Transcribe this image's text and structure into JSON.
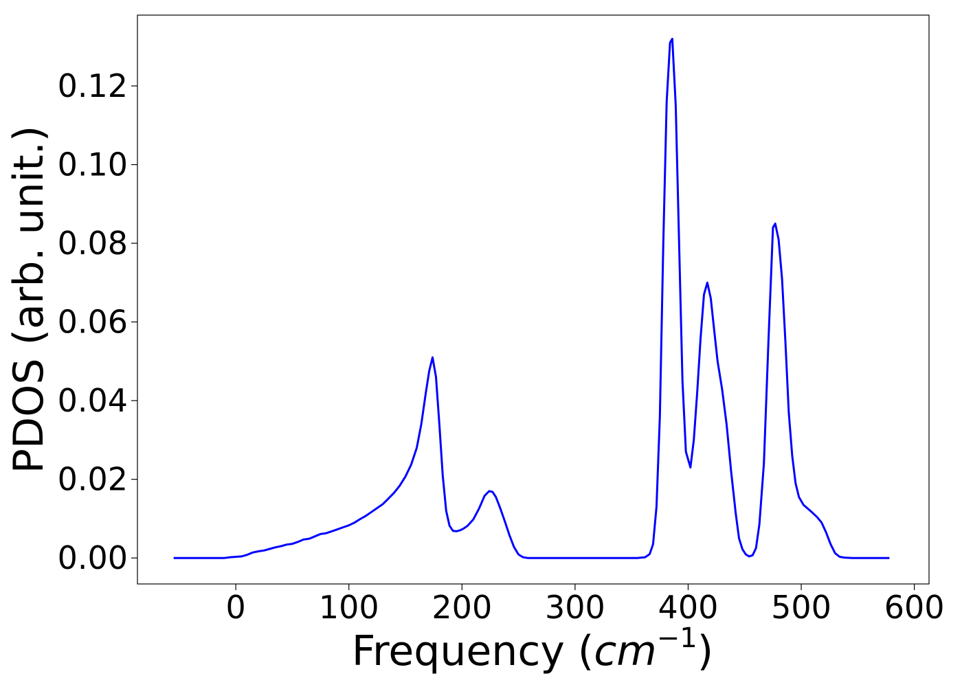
{
  "chart_data": {
    "type": "line",
    "title": "",
    "xlabel": "Frequency (cm⁻¹)",
    "xlabel_parts": {
      "prefix": "Frequency (",
      "unit": "cm",
      "exponent": "−1",
      "suffix": ")"
    },
    "ylabel": "PDOS (arb. unit.)",
    "xlim": [
      -87,
      613
    ],
    "ylim": [
      -0.0066,
      0.138
    ],
    "xticks": [
      0,
      100,
      200,
      300,
      400,
      500,
      600
    ],
    "xtick_labels": [
      "0",
      "100",
      "200",
      "300",
      "400",
      "500",
      "600"
    ],
    "yticks": [
      0.0,
      0.02,
      0.04,
      0.06,
      0.08,
      0.1,
      0.12
    ],
    "ytick_labels": [
      "0.00",
      "0.02",
      "0.04",
      "0.06",
      "0.08",
      "0.10",
      "0.12"
    ],
    "grid": false,
    "legend": "none",
    "series": [
      {
        "color": "#0000ff",
        "x": [
          -55,
          -40,
          -20,
          -10,
          -5,
          0,
          5,
          10,
          15,
          20,
          25,
          30,
          35,
          40,
          45,
          50,
          55,
          60,
          65,
          70,
          75,
          80,
          85,
          90,
          95,
          100,
          105,
          110,
          115,
          120,
          125,
          130,
          135,
          140,
          145,
          150,
          155,
          160,
          164,
          168,
          171,
          174,
          177,
          180,
          183,
          186,
          189,
          192,
          195,
          198,
          201,
          205,
          210,
          215,
          220,
          224,
          227,
          230,
          234,
          238,
          242,
          246,
          250,
          254,
          258,
          265,
          280,
          300,
          320,
          340,
          355,
          362,
          366,
          369,
          372,
          375,
          378,
          381,
          384,
          386,
          389,
          392,
          395,
          398,
          402,
          405,
          408,
          411,
          414,
          417,
          420,
          423,
          426,
          430,
          434,
          438,
          442,
          445,
          448,
          451,
          454,
          457,
          460,
          463,
          467,
          471,
          475,
          477,
          480,
          483,
          486,
          489,
          492,
          495,
          498,
          502,
          506,
          510,
          514,
          518,
          522,
          526,
          530,
          534,
          538,
          545,
          560,
          578
        ],
        "y": [
          0.0,
          0.0,
          0.0,
          0.0,
          0.0002,
          0.0003,
          0.0004,
          0.0008,
          0.0014,
          0.0017,
          0.0019,
          0.0023,
          0.0027,
          0.003,
          0.0034,
          0.0036,
          0.0041,
          0.0047,
          0.0049,
          0.0055,
          0.0061,
          0.0063,
          0.0068,
          0.0073,
          0.0078,
          0.0083,
          0.009,
          0.0099,
          0.0107,
          0.0117,
          0.0127,
          0.0137,
          0.0151,
          0.0166,
          0.0184,
          0.0207,
          0.0237,
          0.028,
          0.034,
          0.042,
          0.0475,
          0.051,
          0.046,
          0.034,
          0.021,
          0.012,
          0.0082,
          0.0069,
          0.0068,
          0.007,
          0.0074,
          0.0082,
          0.0098,
          0.0125,
          0.0158,
          0.017,
          0.0168,
          0.0155,
          0.0125,
          0.0092,
          0.0058,
          0.0028,
          0.0009,
          0.0002,
          0.0,
          0.0,
          0.0,
          0.0,
          0.0,
          0.0,
          0.0,
          0.0002,
          0.001,
          0.0035,
          0.013,
          0.036,
          0.08,
          0.116,
          0.131,
          0.132,
          0.115,
          0.08,
          0.045,
          0.027,
          0.023,
          0.03,
          0.042,
          0.056,
          0.067,
          0.07,
          0.066,
          0.058,
          0.05,
          0.043,
          0.034,
          0.022,
          0.0115,
          0.005,
          0.0022,
          0.0009,
          0.0004,
          0.0007,
          0.0025,
          0.0085,
          0.024,
          0.055,
          0.084,
          0.085,
          0.081,
          0.071,
          0.055,
          0.037,
          0.026,
          0.019,
          0.0155,
          0.0135,
          0.0125,
          0.0115,
          0.0104,
          0.009,
          0.0065,
          0.0035,
          0.0012,
          0.0003,
          0.0001,
          0.0,
          0.0,
          0.0
        ]
      }
    ]
  }
}
